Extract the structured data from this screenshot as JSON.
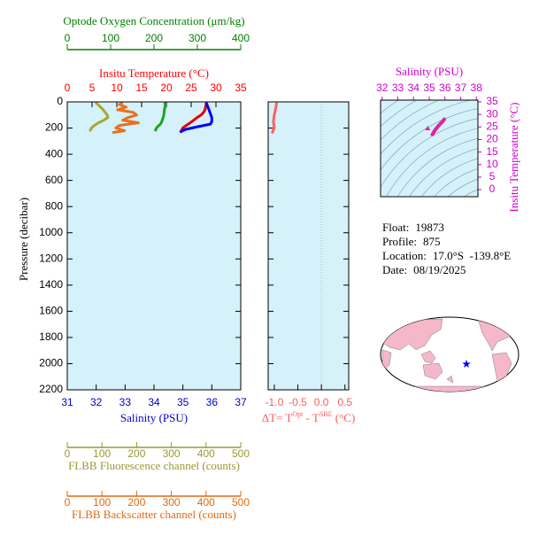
{
  "chart_data": [
    {
      "type": "profile",
      "ylabel": "Pressure (decibar)",
      "ylim": [
        0,
        2200
      ],
      "yticks": [
        0,
        200,
        400,
        600,
        800,
        1000,
        1200,
        1400,
        1600,
        1800,
        2000,
        2200
      ],
      "background": "#d5f1f9",
      "axes": [
        {
          "label": "Insitu Temperature (°C)",
          "side": "top",
          "color": "#ff0000",
          "xlim": [
            0,
            35
          ],
          "xticks": [
            0,
            5,
            10,
            15,
            20,
            25,
            30,
            35
          ],
          "series": [
            {
              "color": "#e00000",
              "values": [
                28.1,
                28.0,
                27.9,
                27.8,
                27.5,
                27.0,
                26.2,
                25.5,
                24.8,
                24.0,
                23.3,
                22.8
              ],
              "pressure": [
                5,
                20,
                40,
                60,
                80,
                100,
                120,
                140,
                160,
                180,
                200,
                235
              ]
            }
          ]
        },
        {
          "label": "Optode Oxygen Concentration (μm/kg)",
          "side": "top",
          "color": "#008000",
          "xlim": [
            0,
            400
          ],
          "xticks": [
            0,
            100,
            200,
            300,
            400
          ],
          "series": [
            {
              "color": "#22a022",
              "values": [
                225,
                226,
                224,
                223,
                222,
                220,
                218,
                215,
                208,
                204,
                203
              ],
              "pressure": [
                5,
                30,
                60,
                90,
                110,
                130,
                150,
                170,
                190,
                210,
                225
              ]
            }
          ]
        },
        {
          "label": "Salinity (PSU)",
          "side": "bottom",
          "color": "#0000cc",
          "xlim": [
            31,
            37
          ],
          "xticks": [
            31,
            32,
            33,
            34,
            35,
            36,
            37
          ],
          "series": [
            {
              "color": "#0000ff",
              "values": [
                35.8,
                35.85,
                35.9,
                35.95,
                36.0,
                36.0,
                35.95,
                35.5,
                35.1,
                34.9
              ],
              "pressure": [
                5,
                30,
                60,
                90,
                120,
                150,
                170,
                190,
                210,
                230
              ]
            }
          ]
        },
        {
          "label": "FLBB Fluorescence channel (counts)",
          "side": "bottom",
          "color": "#999933",
          "xlim": [
            0,
            500
          ],
          "xticks": [
            0,
            100,
            200,
            300,
            400,
            500
          ],
          "series": [
            {
              "color": "#a8a830",
              "values": [
                82,
                90,
                100,
                108,
                115,
                117,
                105,
                90,
                78,
                70,
                65
              ],
              "pressure": [
                5,
                25,
                50,
                75,
                100,
                120,
                140,
                160,
                180,
                200,
                225
              ]
            }
          ]
        },
        {
          "label": "FLBB Backscatter channel (counts)",
          "side": "bottom",
          "color": "#e06a10",
          "xlim": [
            0,
            500
          ],
          "xticks": [
            0,
            100,
            200,
            300,
            400,
            500
          ],
          "series": [
            {
              "color": "#e87020",
              "values": [
                160,
                150,
                170,
                145,
                190,
                200,
                175,
                160,
                205,
                150,
                140,
                165,
                130
              ],
              "pressure": [
                5,
                20,
                40,
                60,
                80,
                100,
                120,
                140,
                160,
                180,
                200,
                220,
                235
              ]
            }
          ]
        }
      ]
    },
    {
      "type": "profile",
      "ylim": [
        0,
        2200
      ],
      "yticks": [
        0,
        200,
        400,
        600,
        800,
        1000,
        1200,
        1400,
        1600,
        1800,
        2000,
        2200
      ],
      "ytick_labels": false,
      "zero_line": true,
      "background": "#d5f1f9",
      "axes": [
        {
          "label": [
            "ΔT= T",
            "Opt",
            " - T",
            "SBE",
            " (°C)"
          ],
          "side": "bottom",
          "color": "#ff5a5a",
          "xlim": [
            -1.13,
            0.58
          ],
          "xticks": [
            {
              "value": -1,
              "label": "-1.0"
            },
            {
              "value": -0.5,
              "label": "-0.5"
            },
            {
              "value": 0,
              "label": "0.0"
            },
            {
              "value": 0.5,
              "label": "0.5"
            }
          ],
          "series": [
            {
              "color": "#ff6060",
              "values": [
                -0.95,
                -0.97,
                -1.0,
                -1.02,
                -1.0,
                -1.05
              ],
              "pressure": [
                5,
                50,
                100,
                150,
                200,
                240
              ]
            }
          ]
        }
      ]
    },
    {
      "type": "scatter",
      "xlabel": "Salinity (PSU)",
      "ylabel": "Insitu Temperature (°C)",
      "color": "#d000d0",
      "background": "#d5f1f9",
      "contours": true,
      "xlim": [
        31.9,
        38.1
      ],
      "xticks": [
        32,
        33,
        34,
        35,
        36,
        37,
        38
      ],
      "ylim": [
        -2.8,
        35.7
      ],
      "yticks": [
        0,
        5,
        10,
        15,
        20,
        25,
        30,
        35
      ],
      "series": [
        {
          "color": "#e020a0",
          "marker": "line",
          "x": [
            35.2,
            35.4,
            35.6,
            35.8,
            35.95
          ],
          "values": [
            22.0,
            24.0,
            25.5,
            26.8,
            28.0
          ]
        },
        {
          "color": "#e020a0",
          "marker": "triangle",
          "x": [
            34.9
          ],
          "values": [
            24.4
          ]
        }
      ]
    }
  ],
  "float_info": [
    [
      "Float:",
      "19873"
    ],
    [
      "Profile:",
      "875"
    ],
    [
      "Location:",
      "17.0°S  -139.8°E"
    ],
    [
      "Date:",
      "08/19/2025"
    ]
  ]
}
